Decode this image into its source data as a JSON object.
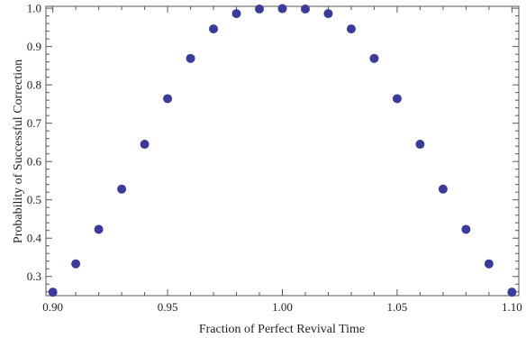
{
  "chart_data": {
    "type": "scatter",
    "title": "",
    "xlabel": "Fraction of Perfect Revival Time",
    "ylabel": "Probability of Successful Correction",
    "xlim": [
      0.897,
      1.103
    ],
    "ylim": [
      0.25,
      1.005
    ],
    "grid": false,
    "legend": "none",
    "marker_color": "#3b3b9a",
    "x_ticks": [
      0.9,
      0.95,
      1.0,
      1.05,
      1.1
    ],
    "x_tick_labels": [
      "0.90",
      "0.95",
      "1.00",
      "1.05",
      "1.10"
    ],
    "y_ticks": [
      0.3,
      0.4,
      0.5,
      0.6,
      0.7,
      0.8,
      0.9,
      1.0
    ],
    "y_tick_labels": [
      "0.3",
      "0.4",
      "0.5",
      "0.6",
      "0.7",
      "0.8",
      "0.9",
      "1.0"
    ],
    "series": [
      {
        "x": [
          0.9,
          0.91,
          0.92,
          0.93,
          0.94,
          0.95,
          0.96,
          0.97,
          0.98,
          0.99,
          1.0,
          1.01,
          1.02,
          1.03,
          1.04,
          1.05,
          1.06,
          1.07,
          1.08,
          1.09,
          1.1
        ],
        "y": [
          0.259,
          0.333,
          0.423,
          0.528,
          0.645,
          0.764,
          0.869,
          0.946,
          0.986,
          0.998,
          0.999,
          0.998,
          0.986,
          0.946,
          0.869,
          0.764,
          0.645,
          0.528,
          0.423,
          0.333,
          0.259
        ]
      }
    ]
  }
}
